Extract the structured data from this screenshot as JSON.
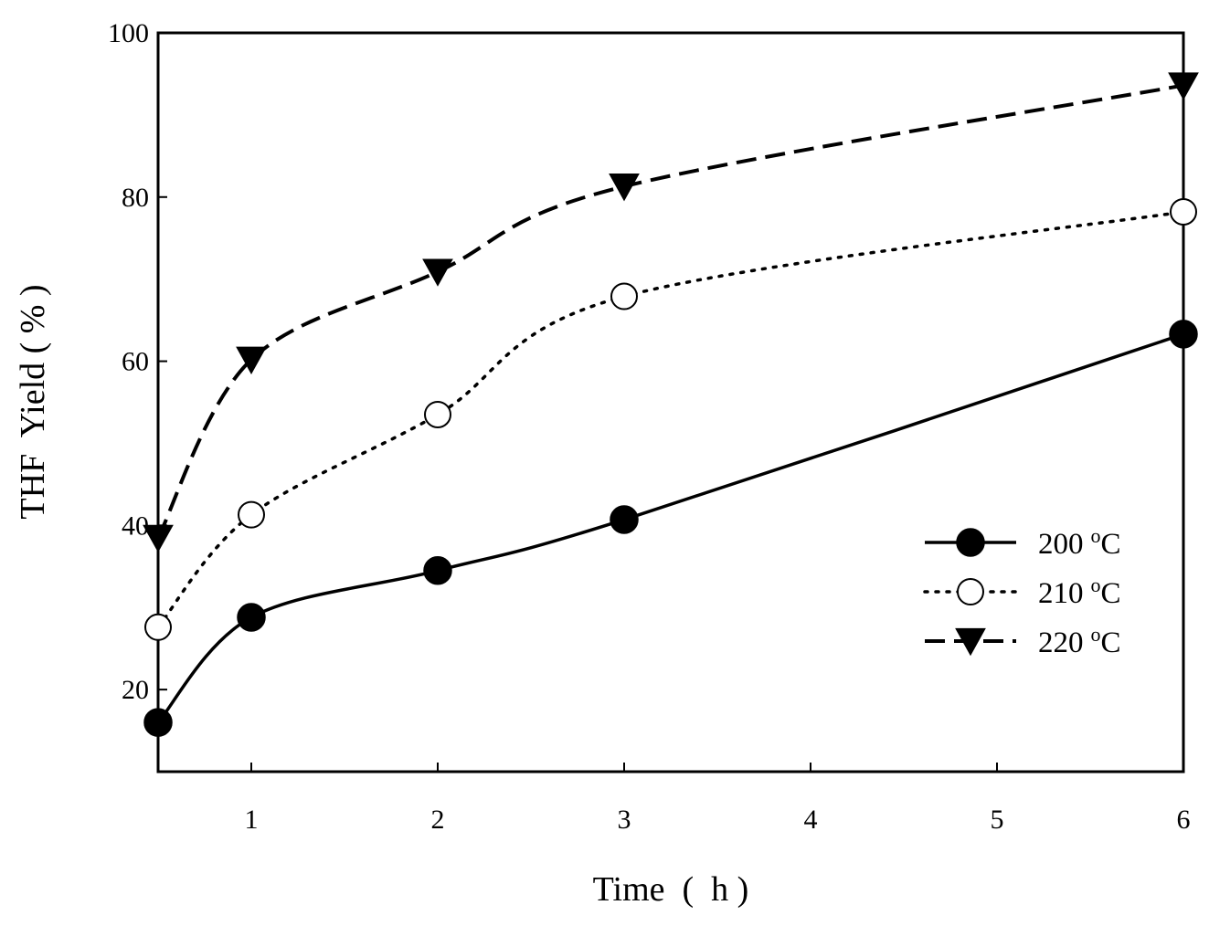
{
  "chart_data": {
    "type": "line",
    "title": "",
    "xlabel": "Time  (  h )",
    "ylabel": "THF  Yield ( % )",
    "xlim": [
      0.5,
      6
    ],
    "ylim": [
      10,
      100
    ],
    "x_ticks": [
      "1",
      "2",
      "3",
      "4",
      "5",
      "6"
    ],
    "y_ticks": [
      "20",
      "40",
      "60",
      "80",
      "100"
    ],
    "x_tick_values": [
      1,
      2,
      3,
      4,
      5,
      6
    ],
    "y_tick_values": [
      20,
      40,
      60,
      80,
      100
    ],
    "grid": false,
    "legend_position": "right",
    "x": [
      0.5,
      1,
      2,
      3,
      6
    ],
    "series": [
      {
        "name": "200",
        "unit_sup": "o",
        "unit": "C",
        "marker": "filled-circle",
        "line": "solid",
        "values": [
          16,
          28.8,
          34.5,
          40.7,
          63.3
        ]
      },
      {
        "name": "210",
        "unit_sup": "o",
        "unit": "C",
        "marker": "open-circle",
        "line": "dotted",
        "values": [
          27.6,
          41.3,
          53.5,
          67.9,
          78.2
        ]
      },
      {
        "name": "220",
        "unit_sup": "o",
        "unit": "C",
        "marker": "filled-triangle-down",
        "line": "dashed",
        "values": [
          38.5,
          60.2,
          70.9,
          81.3,
          93.6
        ]
      }
    ]
  }
}
